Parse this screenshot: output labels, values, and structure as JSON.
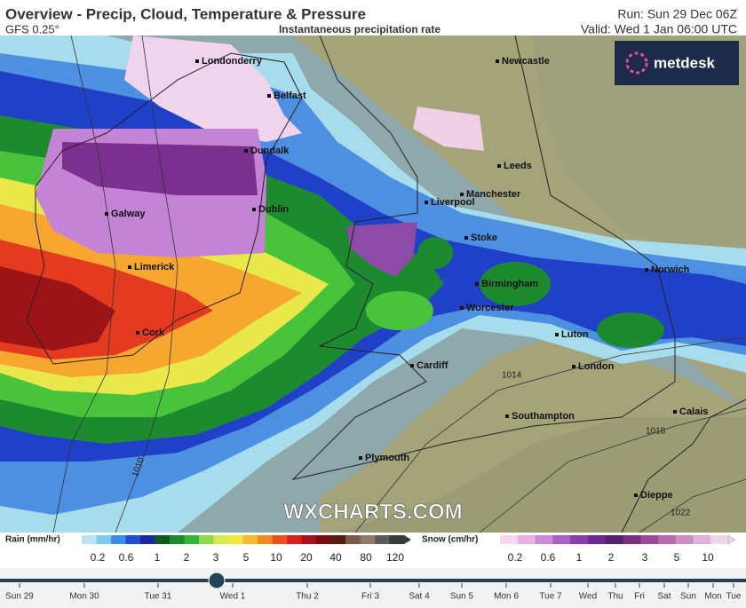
{
  "header": {
    "title": "Overview - Precip, Cloud, Temperature & Pressure",
    "model": "GFS 0.25°",
    "subtitle": "Instantaneous precipitation rate",
    "run": "Run: Sun 29 Dec 06Z",
    "valid": "Valid: Wed 1 Jan 06:00 UTC"
  },
  "logo": "metdesk",
  "map": {
    "cities": [
      "Londonderry",
      "Belfast",
      "Newcastle",
      "Dundalk",
      "Leeds",
      "Manchester",
      "Liverpool",
      "Galway",
      "Dublin",
      "Stoke",
      "Limerick",
      "Birmingham",
      "Norwich",
      "Worcester",
      "Cork",
      "Luton",
      "Cardiff",
      "London",
      "Calais",
      "Southampton",
      "Plymouth",
      "Dieppe"
    ],
    "isobars": [
      "1014",
      "1018",
      "1010",
      "1022"
    ],
    "watermark": "WXCHARTS.COM"
  },
  "legend": {
    "rain": {
      "title": "Rain (mm/hr)",
      "labels": [
        "0.2",
        "0.6",
        "1",
        "2",
        "3",
        "5",
        "10",
        "20",
        "40",
        "80",
        "120"
      ]
    },
    "snow": {
      "title": "Snow (cm/hr)",
      "labels": [
        "0.2",
        "0.6",
        "1",
        "2",
        "3",
        "5",
        "10"
      ]
    }
  },
  "timeline": {
    "labels": [
      "Sun 29",
      "Mon 30",
      "Tue 31",
      "Wed 1",
      "Thu 2",
      "Fri 3",
      "Sat 4",
      "Sun 5",
      "Mon 6",
      "Tue 7",
      "Wed",
      "Thu",
      "Fri",
      "Sat",
      "Sun",
      "Mon",
      "Tue"
    ]
  }
}
